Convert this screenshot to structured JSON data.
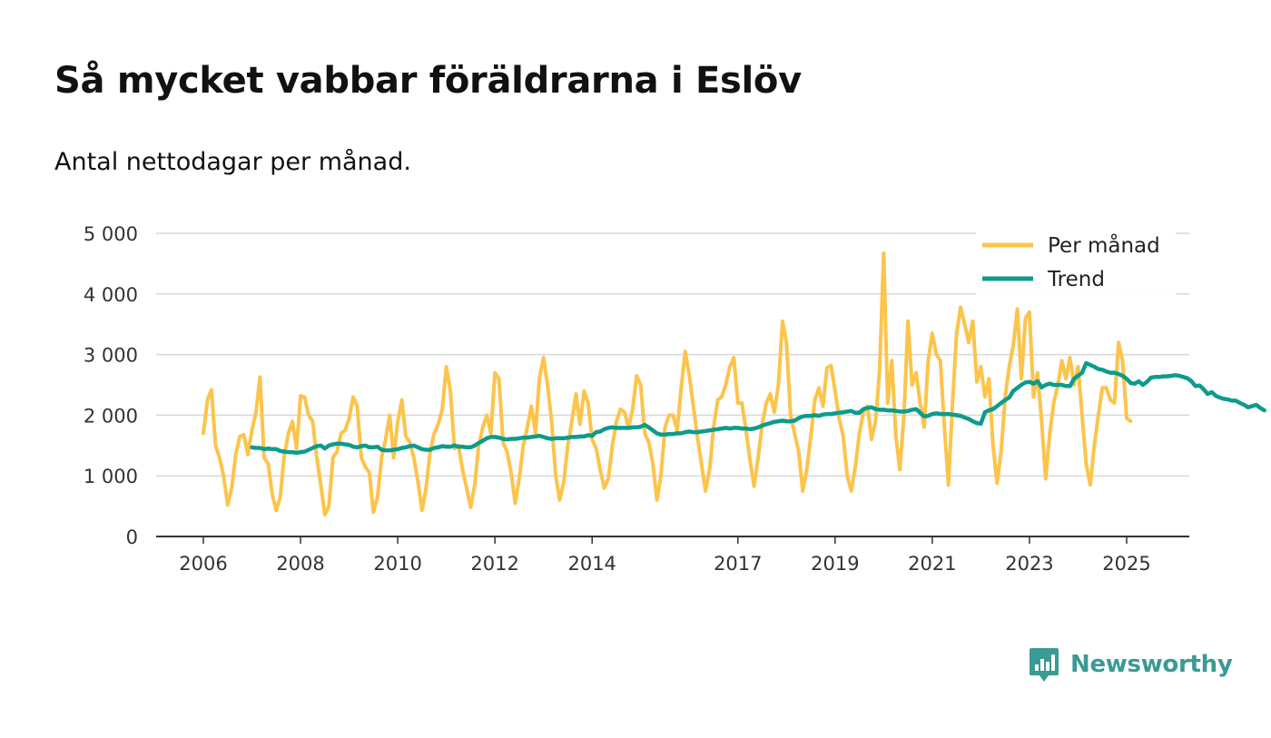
{
  "title": "Så mycket vabbar föräldrarna i Eslöv",
  "subtitle": "Antal nettodagar per månad.",
  "brand": {
    "name": "Newsworthy",
    "color": "#3a9a94",
    "icon": "newsworthy-logo-icon"
  },
  "chart_data": {
    "type": "line",
    "title": "Så mycket vabbar föräldrarna i Eslöv",
    "subtitle": "Antal nettodagar per månad.",
    "xlabel": "",
    "ylabel": "",
    "ylim": [
      0,
      5000
    ],
    "xlim": [
      2005.5,
      2025.8
    ],
    "yticks": [
      0,
      1000,
      2000,
      3000,
      4000,
      5000
    ],
    "ytick_labels": [
      "0",
      "1 000",
      "2 000",
      "3 000",
      "4 000",
      "5 000"
    ],
    "xticks": [
      2006,
      2008,
      2010,
      2012,
      2014,
      2017,
      2019,
      2021,
      2023,
      2025
    ],
    "xtick_labels": [
      "2006",
      "2008",
      "2010",
      "2012",
      "2014",
      "2017",
      "2019",
      "2021",
      "2023",
      "2025"
    ],
    "grid": "horizontal",
    "legend": "top-right",
    "series": [
      {
        "name": "Per månad",
        "color": "#fcc44b",
        "start": 2006.0,
        "step_months": 1,
        "values": [
          1700,
          2250,
          2420,
          1500,
          1300,
          1000,
          520,
          800,
          1350,
          1650,
          1680,
          1350,
          1750,
          2050,
          2630,
          1300,
          1200,
          700,
          430,
          650,
          1350,
          1700,
          1900,
          1450,
          2320,
          2300,
          2000,
          1900,
          1300,
          850,
          360,
          500,
          1300,
          1400,
          1700,
          1750,
          1950,
          2300,
          2150,
          1300,
          1150,
          1050,
          400,
          650,
          1300,
          1600,
          2000,
          1300,
          1900,
          2250,
          1650,
          1550,
          1300,
          900,
          430,
          800,
          1400,
          1700,
          1850,
          2100,
          2800,
          2400,
          1450,
          1500,
          1100,
          800,
          480,
          850,
          1500,
          1800,
          2000,
          1700,
          2700,
          2600,
          1550,
          1400,
          1050,
          550,
          950,
          1500,
          1800,
          2150,
          1700,
          2620,
          2950,
          2500,
          1900,
          1000,
          600,
          900,
          1500,
          1900,
          2350,
          1850,
          2400,
          2200,
          1600,
          1450,
          1100,
          800,
          950,
          1500,
          1900,
          2100,
          2050,
          1800,
          2100,
          2650,
          2500,
          1700,
          1550,
          1200,
          600,
          1000,
          1800,
          2000,
          2000,
          1750,
          2450,
          3050,
          2650,
          2150,
          1650,
          1200,
          750,
          1100,
          1800,
          2250,
          2300,
          2500,
          2800,
          2950,
          2200,
          2200,
          1750,
          1250,
          830,
          1300,
          1850,
          2200,
          2350,
          2050,
          2500,
          3550,
          3200,
          2000,
          1700,
          1400,
          750,
          1100,
          1650,
          2250,
          2450,
          2150,
          2780,
          2820,
          2400,
          1950,
          1650,
          1000,
          750,
          1150,
          1700,
          2050,
          2150,
          1600,
          1900,
          2750,
          4670,
          2200,
          2900,
          1650,
          1100,
          2000,
          3550,
          2500,
          2700,
          2200,
          1800,
          2900,
          3350,
          3000,
          2900,
          1800,
          850,
          2200,
          3350,
          3780,
          3500,
          3200,
          3550,
          2550,
          2800,
          2300,
          2600,
          1500,
          880,
          1400,
          2300,
          2800,
          3150,
          3750,
          2600,
          3600,
          3700,
          2300,
          2700,
          1900,
          950,
          1700,
          2200,
          2500,
          2900,
          2600,
          2950,
          2500,
          2800,
          2000,
          1200,
          850,
          1500,
          2000,
          2450,
          2450,
          2250,
          2200,
          3200,
          2900,
          1950,
          1900
        ]
      },
      {
        "name": "Trend",
        "color": "#0e9b8c",
        "start": 2007.0,
        "step_months": 1,
        "values": [
          1470,
          1460,
          1460,
          1440,
          1450,
          1440,
          1440,
          1410,
          1400,
          1390,
          1390,
          1380,
          1390,
          1400,
          1430,
          1460,
          1490,
          1500,
          1450,
          1500,
          1520,
          1530,
          1530,
          1520,
          1510,
          1480,
          1470,
          1490,
          1500,
          1470,
          1470,
          1480,
          1430,
          1420,
          1420,
          1430,
          1440,
          1460,
          1470,
          1490,
          1500,
          1470,
          1440,
          1430,
          1430,
          1460,
          1470,
          1490,
          1480,
          1480,
          1500,
          1480,
          1480,
          1470,
          1470,
          1500,
          1540,
          1580,
          1620,
          1640,
          1640,
          1630,
          1610,
          1600,
          1610,
          1610,
          1620,
          1630,
          1630,
          1640,
          1650,
          1660,
          1640,
          1620,
          1610,
          1620,
          1620,
          1620,
          1630,
          1640,
          1640,
          1650,
          1650,
          1670,
          1660,
          1720,
          1730,
          1770,
          1790,
          1800,
          1790,
          1790,
          1790,
          1790,
          1800,
          1800,
          1810,
          1840,
          1800,
          1750,
          1700,
          1680,
          1680,
          1690,
          1690,
          1700,
          1700,
          1720,
          1730,
          1720,
          1720,
          1730,
          1740,
          1750,
          1760,
          1770,
          1780,
          1790,
          1780,
          1790,
          1790,
          1780,
          1780,
          1770,
          1780,
          1800,
          1830,
          1850,
          1870,
          1890,
          1900,
          1910,
          1900,
          1900,
          1910,
          1950,
          1980,
          1990,
          1990,
          2000,
          1990,
          2010,
          2020,
          2020,
          2030,
          2040,
          2050,
          2060,
          2070,
          2040,
          2040,
          2100,
          2120,
          2130,
          2100,
          2090,
          2090,
          2080,
          2080,
          2070,
          2060,
          2060,
          2070,
          2090,
          2100,
          2040,
          1980,
          1990,
          2020,
          2030,
          2020,
          2020,
          2020,
          2010,
          2000,
          1990,
          1960,
          1940,
          1900,
          1870,
          1860,
          2050,
          2080,
          2100,
          2150,
          2200,
          2250,
          2290,
          2400,
          2450,
          2500,
          2540,
          2550,
          2520,
          2560,
          2460,
          2500,
          2520,
          2500,
          2500,
          2500,
          2480,
          2480,
          2600,
          2650,
          2700,
          2860,
          2830,
          2800,
          2760,
          2750,
          2720,
          2700,
          2700,
          2680,
          2650,
          2600,
          2530,
          2520,
          2560,
          2500,
          2550,
          2620,
          2630,
          2630,
          2640,
          2640,
          2650,
          2660,
          2650,
          2630,
          2610,
          2560,
          2480,
          2490,
          2430,
          2350,
          2380,
          2320,
          2290,
          2270,
          2260,
          2240,
          2240,
          2200,
          2170,
          2130,
          2150,
          2170,
          2120,
          2080
        ]
      }
    ]
  }
}
